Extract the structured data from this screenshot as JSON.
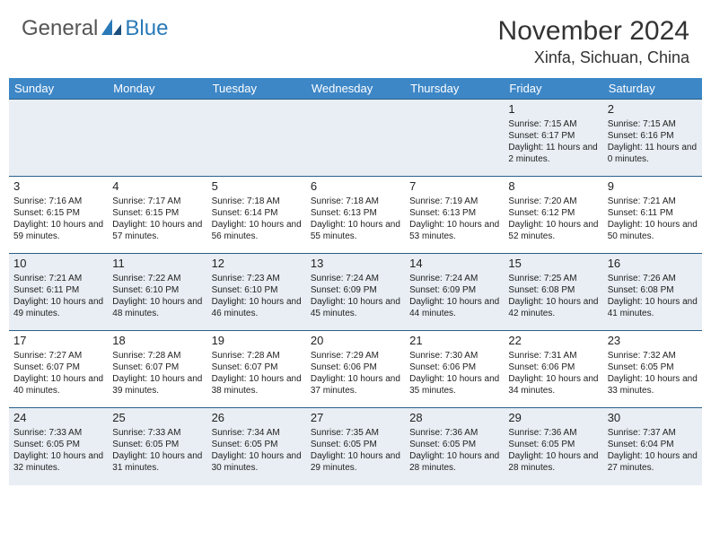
{
  "brand": {
    "general": "General",
    "blue": "Blue"
  },
  "title": "November 2024",
  "location": "Xinfa, Sichuan, China",
  "colors": {
    "header_bg": "#3d87c7",
    "header_text": "#ffffff",
    "alt_row_bg": "#e8eef3",
    "rule": "#2a5f8a",
    "text": "#222222",
    "brand_blue": "#2a7ab8",
    "brand_gray": "#555555",
    "background": "#ffffff"
  },
  "typography": {
    "title_fontsize": 30,
    "location_fontsize": 18,
    "dayheader_fontsize": 13,
    "daynum_fontsize": 13,
    "cell_fontsize": 10
  },
  "days_of_week": [
    "Sunday",
    "Monday",
    "Tuesday",
    "Wednesday",
    "Thursday",
    "Friday",
    "Saturday"
  ],
  "weeks": [
    [
      null,
      null,
      null,
      null,
      null,
      {
        "n": "1",
        "sunrise": "Sunrise: 7:15 AM",
        "sunset": "Sunset: 6:17 PM",
        "daylight": "Daylight: 11 hours and 2 minutes."
      },
      {
        "n": "2",
        "sunrise": "Sunrise: 7:15 AM",
        "sunset": "Sunset: 6:16 PM",
        "daylight": "Daylight: 11 hours and 0 minutes."
      }
    ],
    [
      {
        "n": "3",
        "sunrise": "Sunrise: 7:16 AM",
        "sunset": "Sunset: 6:15 PM",
        "daylight": "Daylight: 10 hours and 59 minutes."
      },
      {
        "n": "4",
        "sunrise": "Sunrise: 7:17 AM",
        "sunset": "Sunset: 6:15 PM",
        "daylight": "Daylight: 10 hours and 57 minutes."
      },
      {
        "n": "5",
        "sunrise": "Sunrise: 7:18 AM",
        "sunset": "Sunset: 6:14 PM",
        "daylight": "Daylight: 10 hours and 56 minutes."
      },
      {
        "n": "6",
        "sunrise": "Sunrise: 7:18 AM",
        "sunset": "Sunset: 6:13 PM",
        "daylight": "Daylight: 10 hours and 55 minutes."
      },
      {
        "n": "7",
        "sunrise": "Sunrise: 7:19 AM",
        "sunset": "Sunset: 6:13 PM",
        "daylight": "Daylight: 10 hours and 53 minutes."
      },
      {
        "n": "8",
        "sunrise": "Sunrise: 7:20 AM",
        "sunset": "Sunset: 6:12 PM",
        "daylight": "Daylight: 10 hours and 52 minutes."
      },
      {
        "n": "9",
        "sunrise": "Sunrise: 7:21 AM",
        "sunset": "Sunset: 6:11 PM",
        "daylight": "Daylight: 10 hours and 50 minutes."
      }
    ],
    [
      {
        "n": "10",
        "sunrise": "Sunrise: 7:21 AM",
        "sunset": "Sunset: 6:11 PM",
        "daylight": "Daylight: 10 hours and 49 minutes."
      },
      {
        "n": "11",
        "sunrise": "Sunrise: 7:22 AM",
        "sunset": "Sunset: 6:10 PM",
        "daylight": "Daylight: 10 hours and 48 minutes."
      },
      {
        "n": "12",
        "sunrise": "Sunrise: 7:23 AM",
        "sunset": "Sunset: 6:10 PM",
        "daylight": "Daylight: 10 hours and 46 minutes."
      },
      {
        "n": "13",
        "sunrise": "Sunrise: 7:24 AM",
        "sunset": "Sunset: 6:09 PM",
        "daylight": "Daylight: 10 hours and 45 minutes."
      },
      {
        "n": "14",
        "sunrise": "Sunrise: 7:24 AM",
        "sunset": "Sunset: 6:09 PM",
        "daylight": "Daylight: 10 hours and 44 minutes."
      },
      {
        "n": "15",
        "sunrise": "Sunrise: 7:25 AM",
        "sunset": "Sunset: 6:08 PM",
        "daylight": "Daylight: 10 hours and 42 minutes."
      },
      {
        "n": "16",
        "sunrise": "Sunrise: 7:26 AM",
        "sunset": "Sunset: 6:08 PM",
        "daylight": "Daylight: 10 hours and 41 minutes."
      }
    ],
    [
      {
        "n": "17",
        "sunrise": "Sunrise: 7:27 AM",
        "sunset": "Sunset: 6:07 PM",
        "daylight": "Daylight: 10 hours and 40 minutes."
      },
      {
        "n": "18",
        "sunrise": "Sunrise: 7:28 AM",
        "sunset": "Sunset: 6:07 PM",
        "daylight": "Daylight: 10 hours and 39 minutes."
      },
      {
        "n": "19",
        "sunrise": "Sunrise: 7:28 AM",
        "sunset": "Sunset: 6:07 PM",
        "daylight": "Daylight: 10 hours and 38 minutes."
      },
      {
        "n": "20",
        "sunrise": "Sunrise: 7:29 AM",
        "sunset": "Sunset: 6:06 PM",
        "daylight": "Daylight: 10 hours and 37 minutes."
      },
      {
        "n": "21",
        "sunrise": "Sunrise: 7:30 AM",
        "sunset": "Sunset: 6:06 PM",
        "daylight": "Daylight: 10 hours and 35 minutes."
      },
      {
        "n": "22",
        "sunrise": "Sunrise: 7:31 AM",
        "sunset": "Sunset: 6:06 PM",
        "daylight": "Daylight: 10 hours and 34 minutes."
      },
      {
        "n": "23",
        "sunrise": "Sunrise: 7:32 AM",
        "sunset": "Sunset: 6:05 PM",
        "daylight": "Daylight: 10 hours and 33 minutes."
      }
    ],
    [
      {
        "n": "24",
        "sunrise": "Sunrise: 7:33 AM",
        "sunset": "Sunset: 6:05 PM",
        "daylight": "Daylight: 10 hours and 32 minutes."
      },
      {
        "n": "25",
        "sunrise": "Sunrise: 7:33 AM",
        "sunset": "Sunset: 6:05 PM",
        "daylight": "Daylight: 10 hours and 31 minutes."
      },
      {
        "n": "26",
        "sunrise": "Sunrise: 7:34 AM",
        "sunset": "Sunset: 6:05 PM",
        "daylight": "Daylight: 10 hours and 30 minutes."
      },
      {
        "n": "27",
        "sunrise": "Sunrise: 7:35 AM",
        "sunset": "Sunset: 6:05 PM",
        "daylight": "Daylight: 10 hours and 29 minutes."
      },
      {
        "n": "28",
        "sunrise": "Sunrise: 7:36 AM",
        "sunset": "Sunset: 6:05 PM",
        "daylight": "Daylight: 10 hours and 28 minutes."
      },
      {
        "n": "29",
        "sunrise": "Sunrise: 7:36 AM",
        "sunset": "Sunset: 6:05 PM",
        "daylight": "Daylight: 10 hours and 28 minutes."
      },
      {
        "n": "30",
        "sunrise": "Sunrise: 7:37 AM",
        "sunset": "Sunset: 6:04 PM",
        "daylight": "Daylight: 10 hours and 27 minutes."
      }
    ]
  ]
}
